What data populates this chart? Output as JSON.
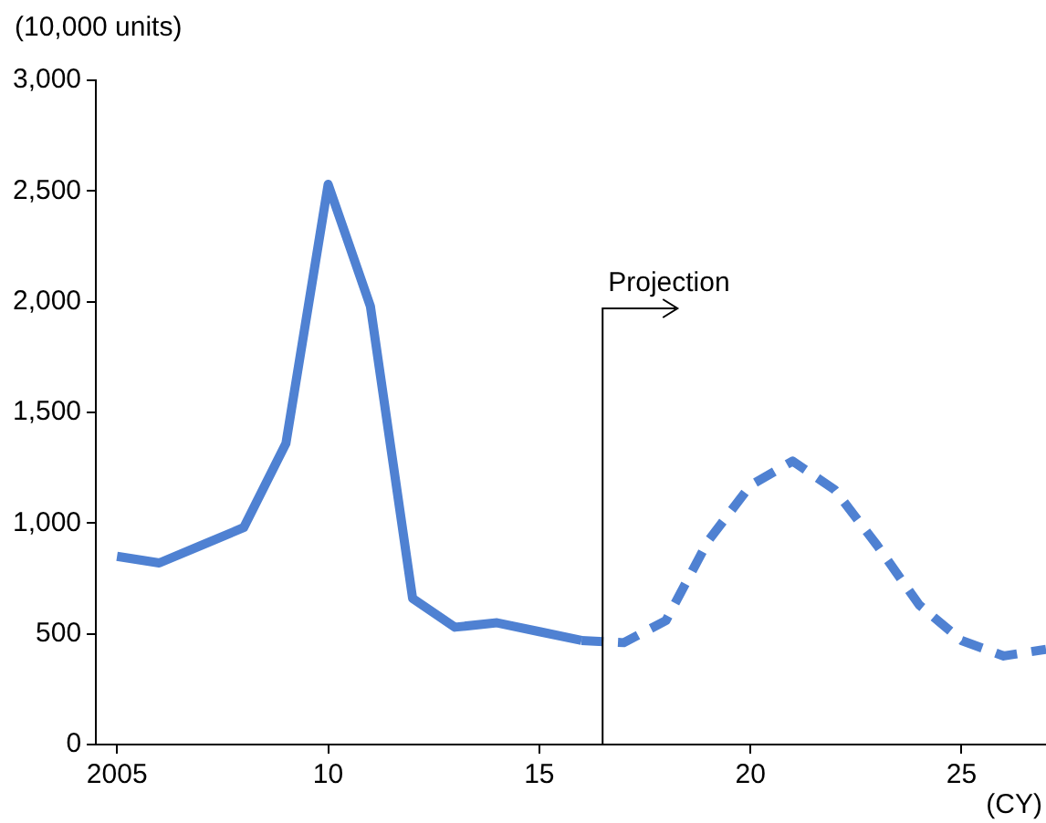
{
  "chart_data": {
    "type": "line",
    "ylabel": "(10,000 units)",
    "xlabel": "(CY)",
    "xlim": [
      2004.5,
      2027
    ],
    "xticks": [
      {
        "value": 2005,
        "label": "2005"
      },
      {
        "value": 2010,
        "label": "10"
      },
      {
        "value": 2015,
        "label": "15"
      },
      {
        "value": 2020,
        "label": "20"
      },
      {
        "value": 2025,
        "label": "25"
      }
    ],
    "ylim": [
      0,
      3000
    ],
    "yticks": [
      0,
      {
        "value": 500,
        "label": "500"
      },
      {
        "value": 1000,
        "label": "1,000"
      },
      {
        "value": 1500,
        "label": "1,500"
      },
      {
        "value": 2000,
        "label": "2,000"
      },
      {
        "value": 2500,
        "label": "2,500"
      },
      {
        "value": 3000,
        "label": "3,000"
      }
    ],
    "grid": false,
    "legend": false,
    "marker": "none",
    "series": [
      {
        "color": "#4f81d2",
        "line_style": "solid",
        "x": [
          2005,
          2006,
          2007,
          2008,
          2009,
          2010,
          2011,
          2012,
          2013,
          2014,
          2015,
          2016
        ],
        "values": [
          850,
          820,
          900,
          980,
          1360,
          2530,
          1980,
          660,
          530,
          550,
          510,
          470
        ]
      },
      {
        "color": "#4f81d2",
        "line_style": "dashed",
        "x": [
          2016,
          2017,
          2018,
          2019,
          2020,
          2021,
          2022,
          2023,
          2024,
          2025,
          2026,
          2027
        ],
        "values": [
          470,
          460,
          560,
          920,
          1170,
          1280,
          1150,
          900,
          630,
          470,
          400,
          430
        ]
      }
    ],
    "ref_lines": [
      {
        "axis": "x",
        "value": 2016.5,
        "label": "Projection",
        "color": "#000000"
      }
    ]
  }
}
